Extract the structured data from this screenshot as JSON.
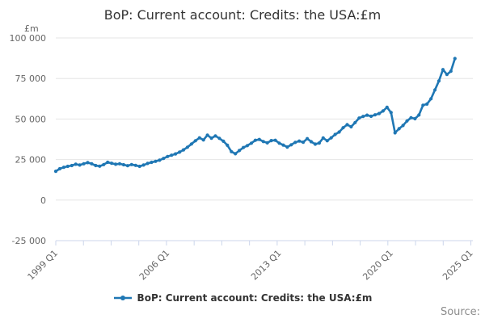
{
  "chart": {
    "title": "BoP: Current account: Credits: the USA:£m",
    "unit_label": "£m",
    "legend_label": "BoP: Current account: Credits: the USA:£m",
    "source_label": "Source:",
    "colors": {
      "line": "#1f77b4",
      "grid": "#e6e6e6",
      "axis": "#ccd6eb",
      "label_text": "#666666",
      "title_text": "#333333"
    }
  },
  "chart_data": {
    "type": "line",
    "title": "BoP: Current account: Credits: the USA:£m",
    "xlabel": "",
    "ylabel": "£m",
    "frequency": "quarterly",
    "x_start": "1999 Q1",
    "x_end": "2024 Q1",
    "ylim": [
      -25000,
      100000
    ],
    "grid": true,
    "legend_position": "bottom",
    "y_ticks": [
      {
        "label": "100 000",
        "value": 100000
      },
      {
        "label": "75 000",
        "value": 75000
      },
      {
        "label": "50 000",
        "value": 50000
      },
      {
        "label": "25 000",
        "value": 25000
      },
      {
        "label": "0",
        "value": 0
      },
      {
        "label": "-25 000",
        "value": -25000
      }
    ],
    "x_ticks": [
      {
        "label": "1999 Q1",
        "q": 0
      },
      {
        "label": "2006 Q1",
        "q": 28
      },
      {
        "label": "2013 Q1",
        "q": 56
      },
      {
        "label": "2020 Q1",
        "q": 84
      },
      {
        "label": "2025 Q1",
        "q": 104
      }
    ],
    "series": [
      {
        "name": "BoP: Current account: Credits: the USA:£m",
        "values": [
          17800,
          19300,
          20200,
          20800,
          21300,
          22100,
          21600,
          22400,
          23100,
          22400,
          21300,
          20900,
          21900,
          23300,
          22700,
          22100,
          22400,
          21800,
          21200,
          21900,
          21400,
          20800,
          21600,
          22600,
          23300,
          23900,
          24600,
          25700,
          26900,
          27700,
          28500,
          29600,
          31000,
          32600,
          34600,
          36600,
          38400,
          37100,
          40100,
          38200,
          39600,
          38100,
          36300,
          33800,
          29900,
          28600,
          30600,
          32400,
          33600,
          35100,
          36900,
          37400,
          36100,
          35300,
          36700,
          36900,
          35100,
          33900,
          32700,
          34100,
          35600,
          36400,
          35700,
          37900,
          36000,
          34500,
          35200,
          38300,
          36600,
          38400,
          40500,
          42000,
          44600,
          46500,
          45200,
          47800,
          50600,
          51600,
          52400,
          51700,
          52600,
          53400,
          55000,
          57200,
          54000,
          41500,
          44000,
          46000,
          48800,
          50800,
          50200,
          52500,
          58500,
          59200,
          62500,
          68000,
          73500,
          80500,
          77500,
          79500,
          87300
        ]
      }
    ]
  }
}
